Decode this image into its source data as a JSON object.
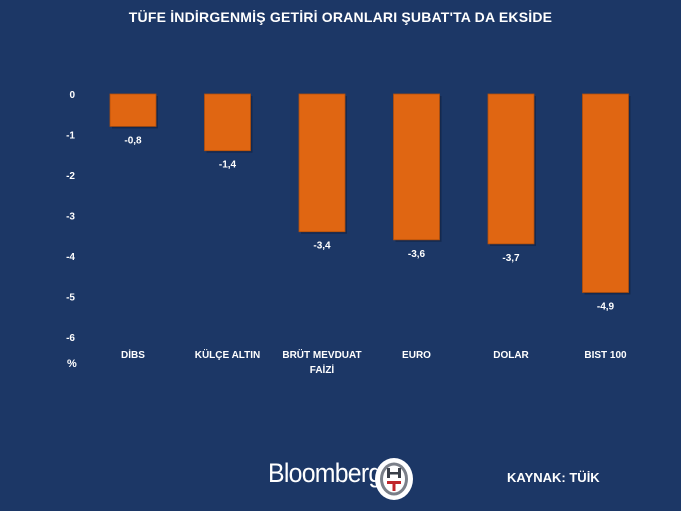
{
  "title": "TÜFE İNDİRGENMİŞ GETİRİ ORANLARI ŞUBAT'TA DA EKSİDE",
  "unit_label": "%",
  "brand": "Bloomberg",
  "logo_letters": "HT",
  "source": "KAYNAK: TÜİK",
  "colors": {
    "background": "#1c3766",
    "bar": "#e06612",
    "bar_edge": "#b24f0a",
    "text": "#ffffff"
  },
  "chart_data": {
    "type": "bar",
    "title": "TÜFE İNDİRGENMİŞ GETİRİ ORANLARI ŞUBAT'TA DA EKSİDE",
    "categories": [
      [
        "DİBS"
      ],
      [
        "KÜLÇE ALTIN"
      ],
      [
        "BRÜT MEVDUAT",
        "FAİZİ"
      ],
      [
        "EURO"
      ],
      [
        "DOLAR"
      ],
      [
        "BIST 100"
      ]
    ],
    "values": [
      -0.8,
      -1.4,
      -3.4,
      -3.6,
      -3.7,
      -4.9
    ],
    "value_labels": [
      "-0,8",
      "-1,4",
      "-3,4",
      "-3,6",
      "-3,7",
      "-4,9"
    ],
    "yticks": [
      0,
      -1,
      -2,
      -3,
      -4,
      -5,
      -6
    ],
    "ylim": [
      -6,
      0
    ],
    "ylabel": "%",
    "grid": false,
    "legend": "none"
  }
}
